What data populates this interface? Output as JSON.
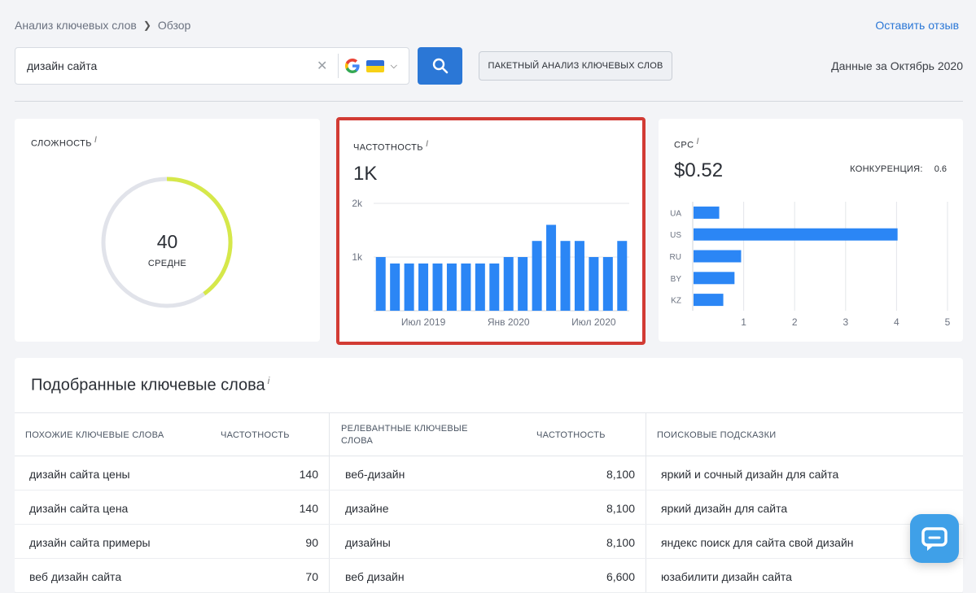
{
  "breadcrumb": {
    "root": "Анализ ключевых слов",
    "current": "Обзор"
  },
  "feedback_link": "Оставить отзыв",
  "search": {
    "value": "дизайн сайта",
    "engine": "google",
    "country": "UA"
  },
  "batch_button": "ПАКЕТНЫЙ АНАЛИЗ КЛЮЧЕВЫХ СЛОВ",
  "data_date": "Данные за Октябрь 2020",
  "difficulty": {
    "title": "СЛОЖНОСТЬ",
    "info": "i",
    "value": "40",
    "value_num": 40,
    "max": 100,
    "label": "СРЕДНЕ",
    "color": "#d6e84a"
  },
  "frequency": {
    "title": "ЧАСТОТНОСТЬ",
    "info": "i",
    "value": "1K",
    "chart_data": {
      "type": "bar",
      "ylim": [
        0,
        2000
      ],
      "yticks": [
        {
          "v": 1000,
          "label": "1k"
        },
        {
          "v": 2000,
          "label": "2k"
        }
      ],
      "xticks": [
        {
          "i": 3,
          "label": "Июл 2019"
        },
        {
          "i": 9,
          "label": "Янв 2020"
        },
        {
          "i": 15,
          "label": "Июл 2020"
        }
      ],
      "values": [
        1000,
        880,
        880,
        880,
        880,
        880,
        880,
        880,
        880,
        1000,
        1000,
        1300,
        1600,
        1300,
        1300,
        1000,
        1000,
        1300
      ],
      "color": "#2b86f5"
    }
  },
  "cpc": {
    "title": "CPC",
    "info": "i",
    "value": "$0.52",
    "competition_label": "КОНКУРЕНЦИЯ:",
    "competition_value": "0.6",
    "chart_data": {
      "type": "bar",
      "orientation": "horizontal",
      "categories": [
        "UA",
        "US",
        "RU",
        "BY",
        "KZ"
      ],
      "values": [
        0.52,
        4.02,
        0.95,
        0.82,
        0.6
      ],
      "xlim": [
        0,
        5
      ],
      "xticks": [
        1,
        2,
        3,
        4,
        5
      ],
      "color": "#2b86f5"
    }
  },
  "keywords": {
    "title": "Подобранные ключевые слова",
    "info": "i",
    "headers": {
      "similar": "ПОХОЖИЕ КЛЮЧЕВЫЕ СЛОВА",
      "freq1": "ЧАСТОТНОСТЬ",
      "relevant": "РЕЛЕВАНТНЫЕ КЛЮЧЕВЫЕ СЛОВА",
      "freq2": "ЧАСТОТНОСТЬ",
      "suggest": "ПОИСКОВЫЕ ПОДСКАЗКИ"
    },
    "rows": [
      {
        "similar": "дизайн сайта цены",
        "freq1": "140",
        "relevant": "веб-дизайн",
        "freq2": "8,100",
        "suggest": "яркий и сочный дизайн для сайта"
      },
      {
        "similar": "дизайн сайта цена",
        "freq1": "140",
        "relevant": "дизайне",
        "freq2": "8,100",
        "suggest": "яркий дизайн для сайта"
      },
      {
        "similar": "дизайн сайта примеры",
        "freq1": "90",
        "relevant": "дизайны",
        "freq2": "8,100",
        "suggest": "яндекс поиск для сайта свой дизайн"
      },
      {
        "similar": "веб дизайн сайта",
        "freq1": "70",
        "relevant": "веб дизайн",
        "freq2": "6,600",
        "suggest": "юзабилити дизайн сайта"
      }
    ]
  }
}
